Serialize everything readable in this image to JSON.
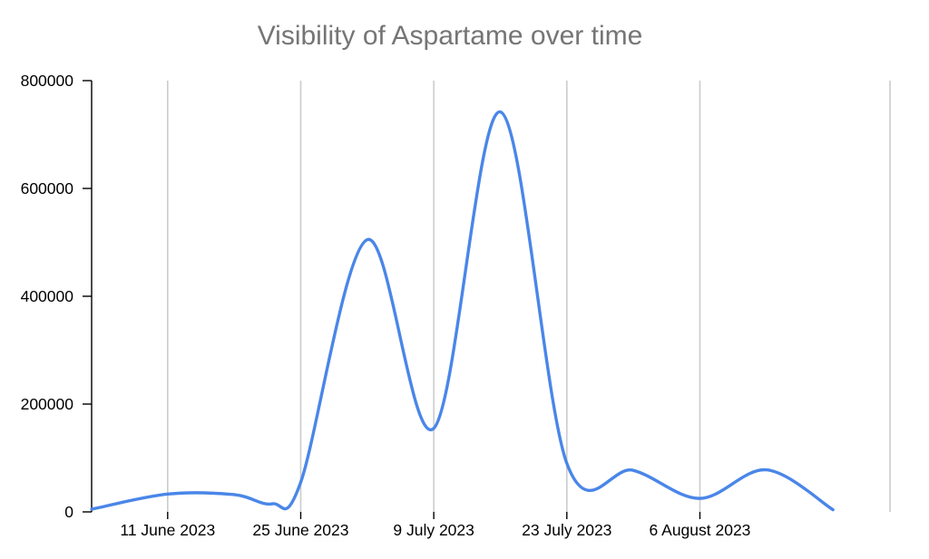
{
  "chart_data": {
    "type": "line",
    "title": "Visibility of Aspartame over time",
    "xlabel": "",
    "ylabel": "",
    "x_type": "date",
    "xlim": [
      "2023-06-03",
      "2023-08-26"
    ],
    "ylim": [
      0,
      800000
    ],
    "yticks": [
      {
        "value": 0,
        "label": "0"
      },
      {
        "value": 200000,
        "label": "200000"
      },
      {
        "value": 400000,
        "label": "400000"
      },
      {
        "value": 600000,
        "label": "600000"
      },
      {
        "value": 800000,
        "label": "800000"
      }
    ],
    "xticks": [
      {
        "date": "2023-06-11",
        "label": "11 June 2023"
      },
      {
        "date": "2023-06-25",
        "label": "25 June 2023"
      },
      {
        "date": "2023-07-09",
        "label": "9 July 2023"
      },
      {
        "date": "2023-07-23",
        "label": "23 July 2023"
      },
      {
        "date": "2023-08-06",
        "label": "6 August 2023"
      }
    ],
    "grid": {
      "vertical": true,
      "horizontal": false
    },
    "smooth": true,
    "legend": "none",
    "series": [
      {
        "color": "#4A86E8",
        "points": [
          {
            "date": "2023-06-03",
            "value": 5000
          },
          {
            "date": "2023-06-11",
            "value": 33000
          },
          {
            "date": "2023-06-18",
            "value": 32000
          },
          {
            "date": "2023-06-22",
            "value": 15000
          },
          {
            "date": "2023-06-25",
            "value": 55000
          },
          {
            "date": "2023-07-02",
            "value": 505000
          },
          {
            "date": "2023-07-09",
            "value": 155000
          },
          {
            "date": "2023-07-16",
            "value": 742000
          },
          {
            "date": "2023-07-23",
            "value": 90000
          },
          {
            "date": "2023-07-30",
            "value": 77000
          },
          {
            "date": "2023-08-06",
            "value": 25000
          },
          {
            "date": "2023-08-13",
            "value": 78000
          },
          {
            "date": "2023-08-20",
            "value": 4000
          }
        ]
      }
    ]
  }
}
